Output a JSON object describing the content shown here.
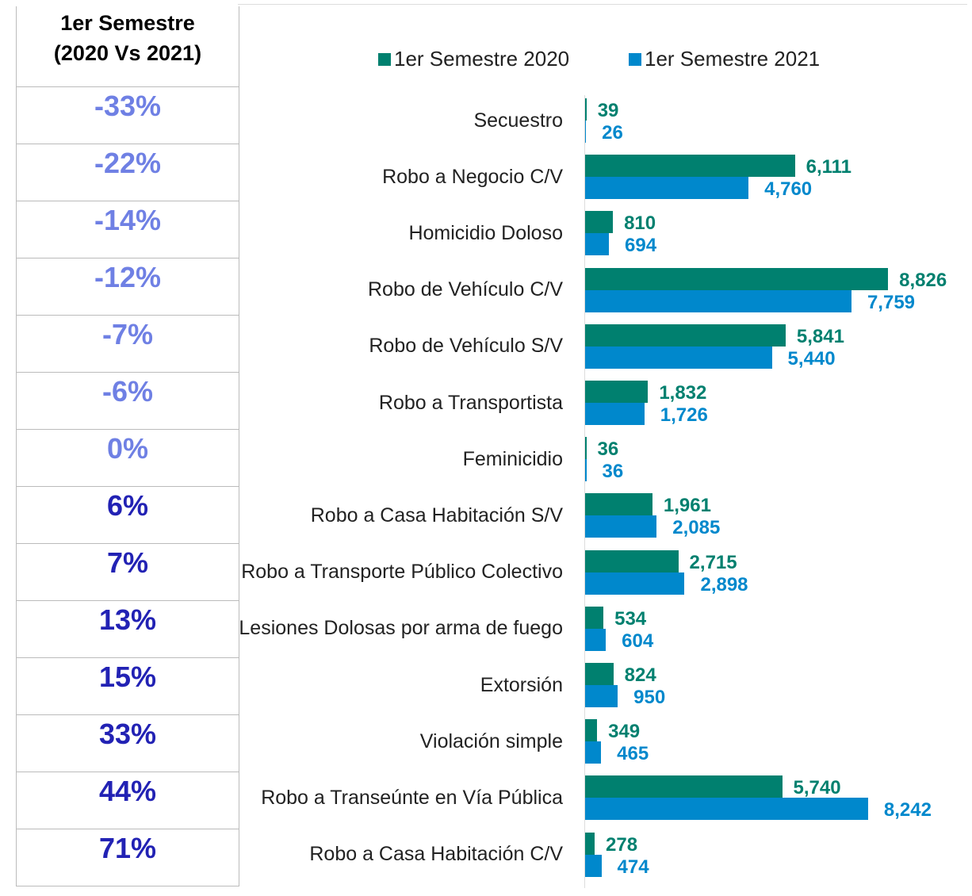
{
  "table": {
    "header": "1er Semestre\n(2020 Vs 2021)",
    "rows": [
      "-33%",
      "-22%",
      "-14%",
      "-12%",
      "-7%",
      "-6%",
      "0%",
      "6%",
      "7%",
      "13%",
      "15%",
      "33%",
      "44%",
      "71%"
    ]
  },
  "chart_data": {
    "type": "bar",
    "orientation": "horizontal",
    "categories": [
      "Secuestro",
      "Robo a Negocio C/V",
      "Homicidio Doloso",
      "Robo de Vehículo C/V",
      "Robo de Vehículo S/V",
      "Robo a Transportista",
      "Feminicidio",
      "Robo a Casa Habitación S/V",
      "Robo a Transporte Público Colectivo",
      "Lesiones Dolosas por arma de fuego",
      "Extorsión",
      "Violación simple",
      "Robo a Transeúnte en Vía Pública",
      "Robo a Casa Habitación C/V"
    ],
    "series": [
      {
        "name": "1er Semestre 2020",
        "color": "#00806f",
        "values": [
          39,
          6111,
          810,
          8826,
          5841,
          1832,
          36,
          1961,
          2715,
          534,
          824,
          349,
          5740,
          278
        ],
        "value_labels": [
          "39",
          "6,111",
          "810",
          "8,826",
          "5,841",
          "1,832",
          "36",
          "1,961",
          "2,715",
          "534",
          "824",
          "349",
          "5,740",
          "278"
        ]
      },
      {
        "name": "1er Semestre 2021",
        "color": "#0088cc",
        "values": [
          26,
          4760,
          694,
          7759,
          5440,
          1726,
          36,
          2085,
          2898,
          604,
          950,
          465,
          8242,
          474
        ],
        "value_labels": [
          "26",
          "4,760",
          "694",
          "7,759",
          "5,440",
          "1,726",
          "36",
          "2,085",
          "2,898",
          "604",
          "950",
          "465",
          "8,242",
          "474"
        ]
      }
    ],
    "legend": "top"
  }
}
